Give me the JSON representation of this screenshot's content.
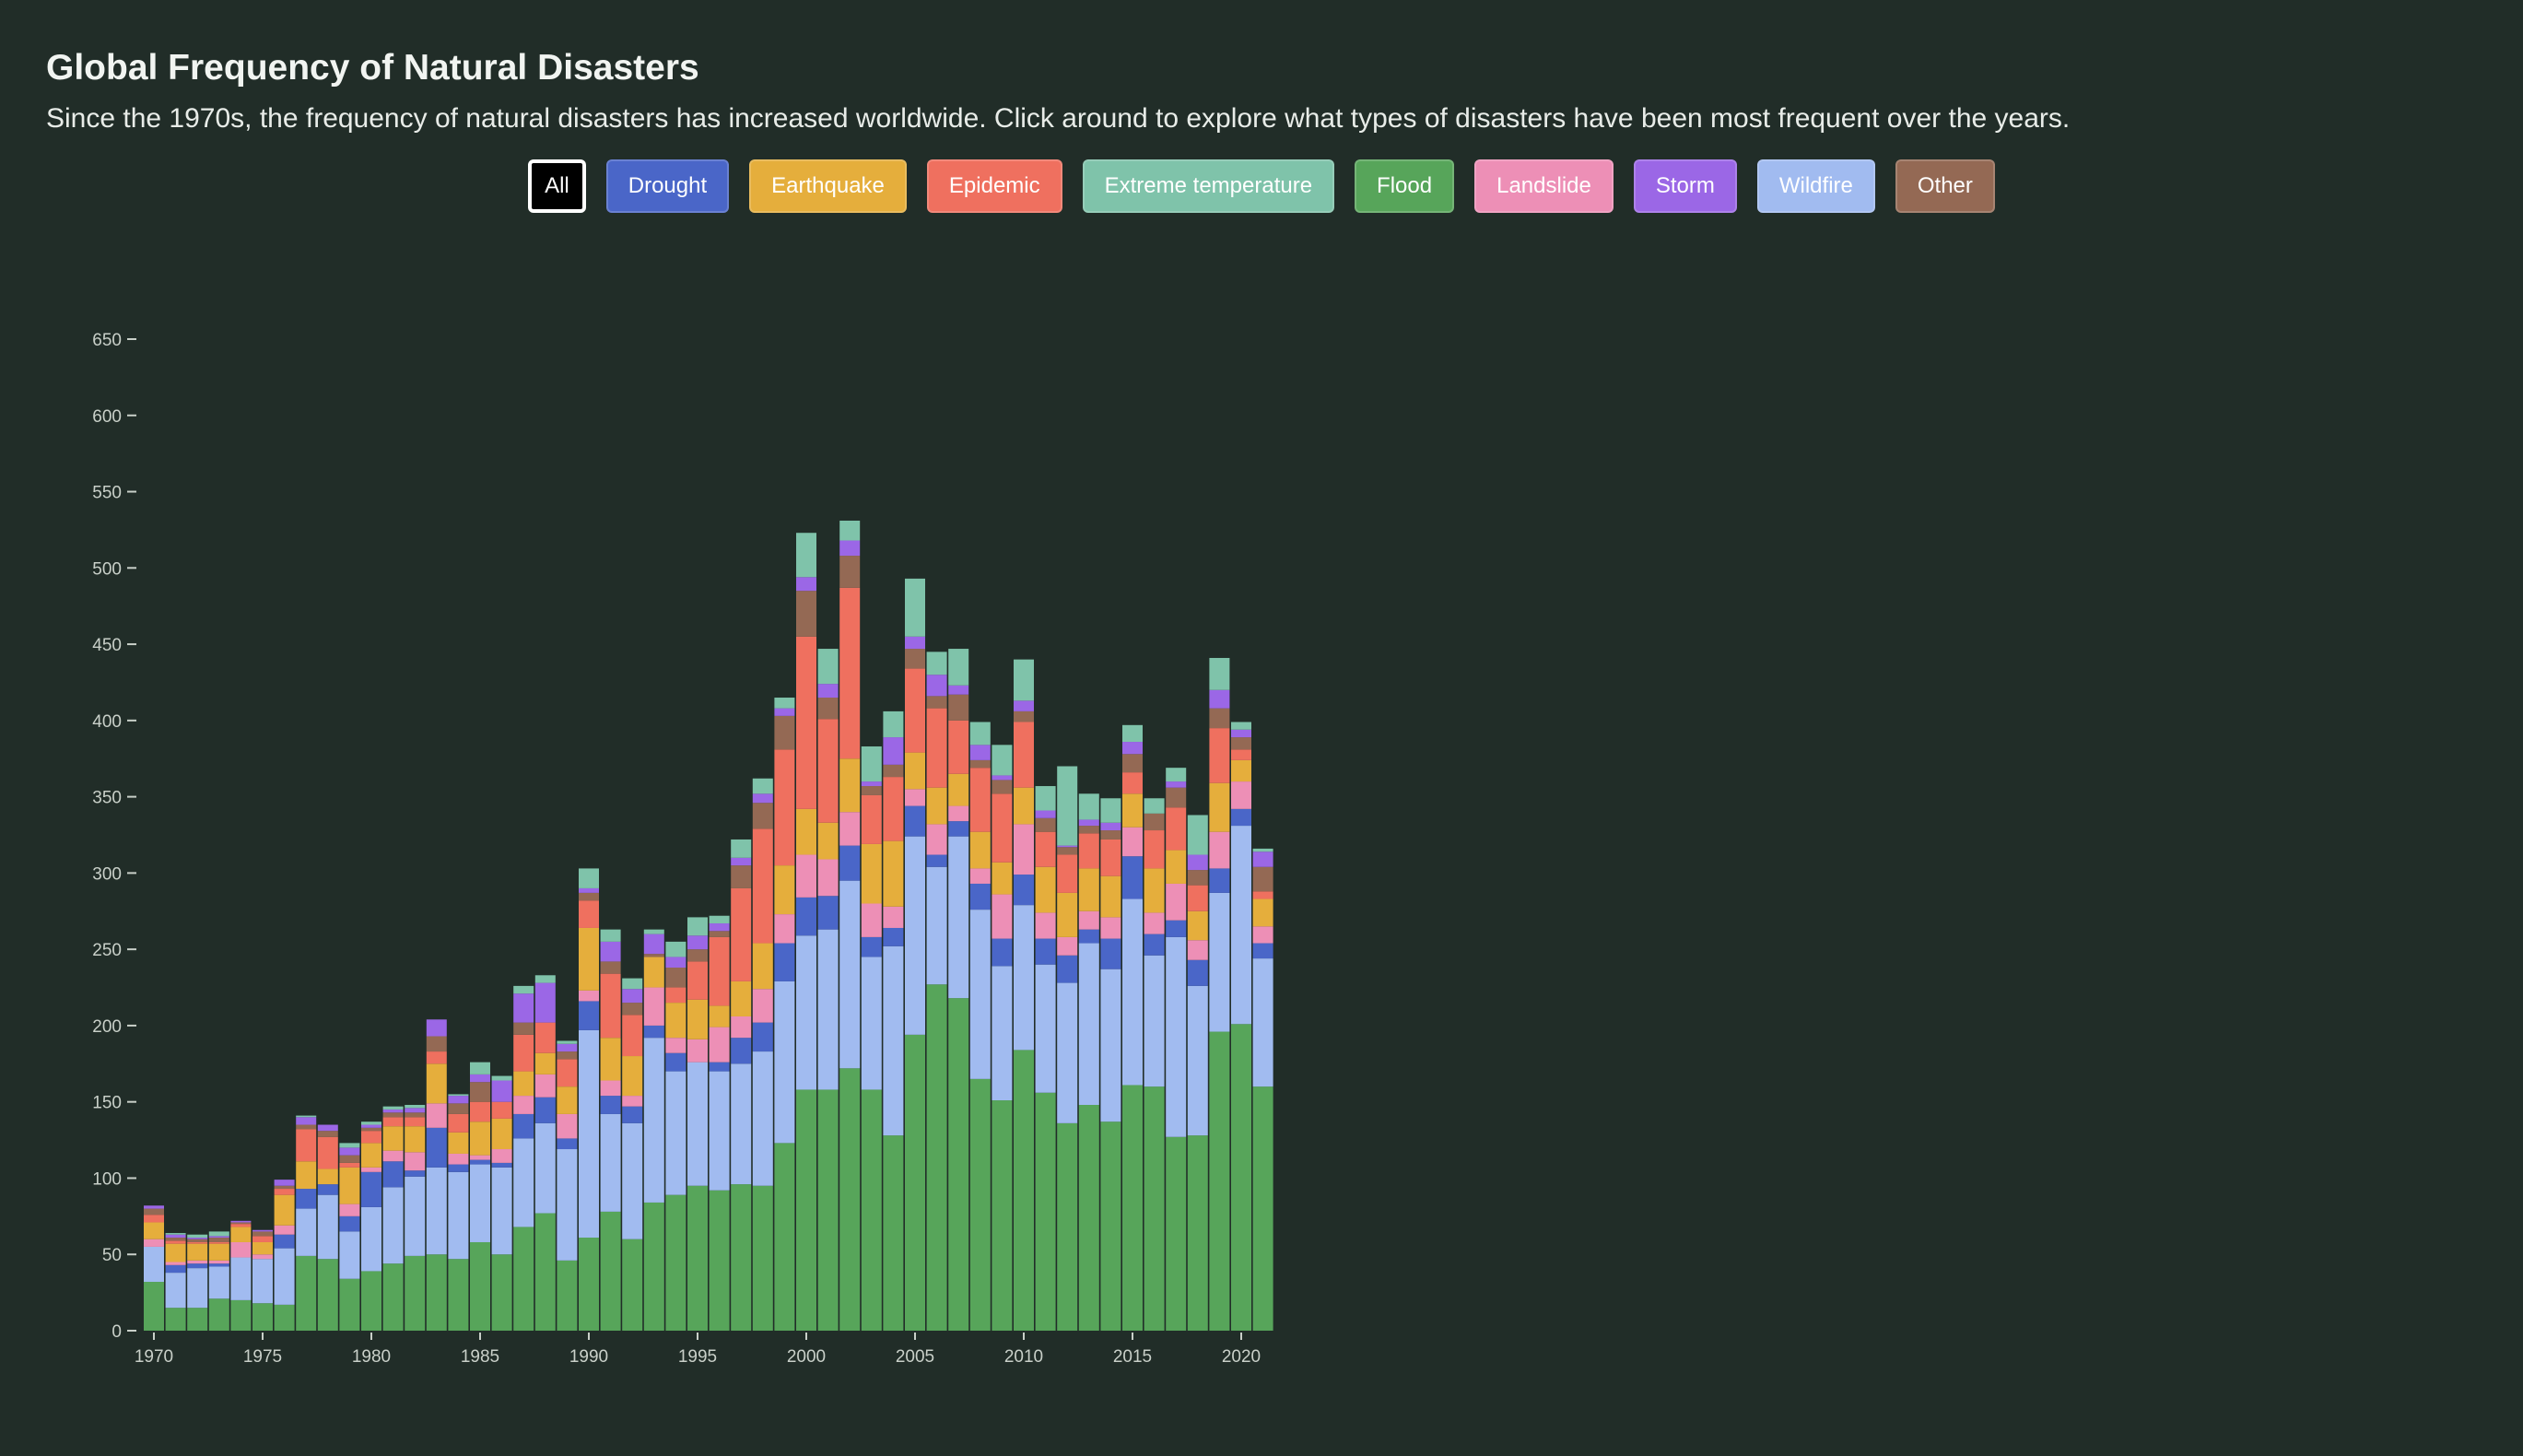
{
  "header": {
    "title": "Global Frequency of Natural Disasters",
    "subtitle": "Since the 1970s, the frequency of natural disasters has increased worldwide. Click around to explore what types of disasters have been most frequent over the years."
  },
  "filters": [
    {
      "label": "All",
      "color": "#000000",
      "active": true
    },
    {
      "label": "Drought",
      "color": "#4a66c8"
    },
    {
      "label": "Earthquake",
      "color": "#e5ae3c"
    },
    {
      "label": "Epidemic",
      "color": "#ef705f"
    },
    {
      "label": "Extreme temperature",
      "color": "#7fc3aa"
    },
    {
      "label": "Flood",
      "color": "#57a55a"
    },
    {
      "label": "Landslide",
      "color": "#ed8fb6"
    },
    {
      "label": "Storm",
      "color": "#9b67e6"
    },
    {
      "label": "Wildfire",
      "color": "#a1bbf0"
    },
    {
      "label": "Other",
      "color": "#946954"
    }
  ],
  "chart_data": {
    "type": "bar",
    "stacked": true,
    "ylim": [
      0,
      650
    ],
    "yticks": [
      0,
      50,
      100,
      150,
      200,
      250,
      300,
      350,
      400,
      450,
      500,
      550,
      600,
      650
    ],
    "xticks": [
      1970,
      1975,
      1980,
      1985,
      1990,
      1995,
      2000,
      2005,
      2010,
      2015,
      2020
    ],
    "grid": false,
    "categories": [
      1970,
      1971,
      1972,
      1973,
      1974,
      1975,
      1976,
      1977,
      1978,
      1979,
      1980,
      1981,
      1982,
      1983,
      1984,
      1985,
      1986,
      1987,
      1988,
      1989,
      1990,
      1991,
      1992,
      1993,
      1994,
      1995,
      1996,
      1997,
      1998,
      1999,
      2000,
      2001,
      2002,
      2003,
      2004,
      2005,
      2006,
      2007,
      2008,
      2009,
      2010,
      2011,
      2012,
      2013,
      2014,
      2015,
      2016,
      2017,
      2018,
      2019,
      2020,
      2021
    ],
    "series": [
      {
        "key": "Flood",
        "color": "#57a55a",
        "values": [
          32,
          15,
          15,
          21,
          20,
          18,
          17,
          49,
          47,
          34,
          39,
          44,
          49,
          50,
          47,
          58,
          50,
          68,
          77,
          46,
          61,
          78,
          60,
          84,
          89,
          95,
          92,
          96,
          95,
          123,
          158,
          158,
          172,
          158,
          128,
          194,
          227,
          218,
          165,
          151,
          184,
          156,
          136,
          148,
          137,
          161,
          160,
          127,
          128,
          196,
          201,
          160
        ]
      },
      {
        "key": "Wildfire",
        "color": "#a1bbf0",
        "values": [
          23,
          23,
          26,
          21,
          28,
          29,
          37,
          31,
          42,
          31,
          42,
          50,
          52,
          57,
          57,
          51,
          57,
          58,
          59,
          73,
          136,
          64,
          76,
          108,
          81,
          81,
          78,
          79,
          88,
          106,
          101,
          105,
          123,
          87,
          124,
          130,
          77,
          106,
          111,
          88,
          95,
          84,
          92,
          106,
          100,
          122,
          86,
          131,
          98,
          91,
          130,
          84
        ]
      },
      {
        "key": "Drought",
        "color": "#4a66c8",
        "values": [
          0,
          5,
          3,
          2,
          0,
          0,
          9,
          13,
          7,
          10,
          23,
          17,
          4,
          26,
          5,
          3,
          3,
          16,
          17,
          7,
          19,
          12,
          11,
          8,
          12,
          0,
          6,
          17,
          19,
          25,
          25,
          22,
          23,
          13,
          12,
          20,
          8,
          10,
          17,
          18,
          20,
          17,
          18,
          9,
          20,
          28,
          14,
          11,
          17,
          16,
          11,
          10
        ]
      },
      {
        "key": "Landslide",
        "color": "#ed8fb6",
        "values": [
          5,
          2,
          2,
          2,
          10,
          3,
          6,
          0,
          0,
          8,
          3,
          7,
          12,
          16,
          7,
          3,
          9,
          12,
          15,
          16,
          7,
          10,
          7,
          25,
          10,
          15,
          23,
          14,
          22,
          19,
          28,
          24,
          22,
          22,
          14,
          11,
          20,
          10,
          10,
          29,
          33,
          17,
          12,
          12,
          14,
          19,
          14,
          24,
          13,
          24,
          18,
          11
        ]
      },
      {
        "key": "Earthquake",
        "color": "#e5ae3c",
        "values": [
          11,
          12,
          11,
          11,
          10,
          8,
          20,
          18,
          10,
          24,
          16,
          16,
          17,
          26,
          14,
          22,
          20,
          16,
          14,
          18,
          41,
          28,
          26,
          20,
          23,
          26,
          14,
          23,
          30,
          32,
          30,
          24,
          35,
          39,
          43,
          24,
          24,
          21,
          24,
          21,
          24,
          30,
          29,
          28,
          27,
          22,
          29,
          22,
          19,
          32,
          14,
          18
        ]
      },
      {
        "key": "Epidemic",
        "color": "#ef705f",
        "values": [
          5,
          2,
          1,
          1,
          2,
          4,
          4,
          21,
          21,
          3,
          8,
          6,
          6,
          8,
          12,
          13,
          11,
          24,
          20,
          18,
          18,
          42,
          27,
          0,
          10,
          25,
          45,
          61,
          75,
          76,
          113,
          68,
          112,
          32,
          42,
          55,
          52,
          35,
          42,
          45,
          43,
          23,
          25,
          23,
          24,
          14,
          25,
          28,
          17,
          36,
          7,
          5
        ]
      },
      {
        "key": "Other",
        "color": "#946954",
        "values": [
          4,
          2,
          2,
          3,
          1,
          3,
          2,
          3,
          4,
          5,
          2,
          3,
          3,
          10,
          7,
          13,
          0,
          8,
          0,
          5,
          5,
          8,
          8,
          2,
          13,
          8,
          4,
          15,
          17,
          22,
          30,
          14,
          21,
          6,
          8,
          13,
          8,
          17,
          5,
          9,
          7,
          9,
          5,
          5,
          6,
          12,
          11,
          13,
          10,
          13,
          8,
          16
        ]
      },
      {
        "key": "Storm",
        "color": "#9b67e6",
        "values": [
          2,
          2,
          1,
          1,
          1,
          1,
          4,
          5,
          4,
          5,
          2,
          2,
          3,
          11,
          5,
          5,
          14,
          19,
          26,
          5,
          3,
          13,
          9,
          13,
          7,
          9,
          5,
          5,
          6,
          5,
          9,
          9,
          10,
          3,
          18,
          8,
          14,
          6,
          10,
          3,
          7,
          5,
          1,
          4,
          5,
          8,
          0,
          4,
          10,
          12,
          5,
          10
        ]
      },
      {
        "key": "Extreme temperature",
        "color": "#7fc3aa",
        "values": [
          0,
          1,
          2,
          3,
          0,
          0,
          0,
          1,
          0,
          3,
          2,
          2,
          2,
          0,
          1,
          8,
          3,
          5,
          5,
          2,
          13,
          8,
          7,
          3,
          10,
          12,
          5,
          12,
          10,
          7,
          29,
          23,
          13,
          23,
          17,
          38,
          15,
          24,
          15,
          20,
          27,
          16,
          52,
          17,
          16,
          11,
          10,
          9,
          26,
          21,
          5,
          2
        ]
      }
    ]
  }
}
